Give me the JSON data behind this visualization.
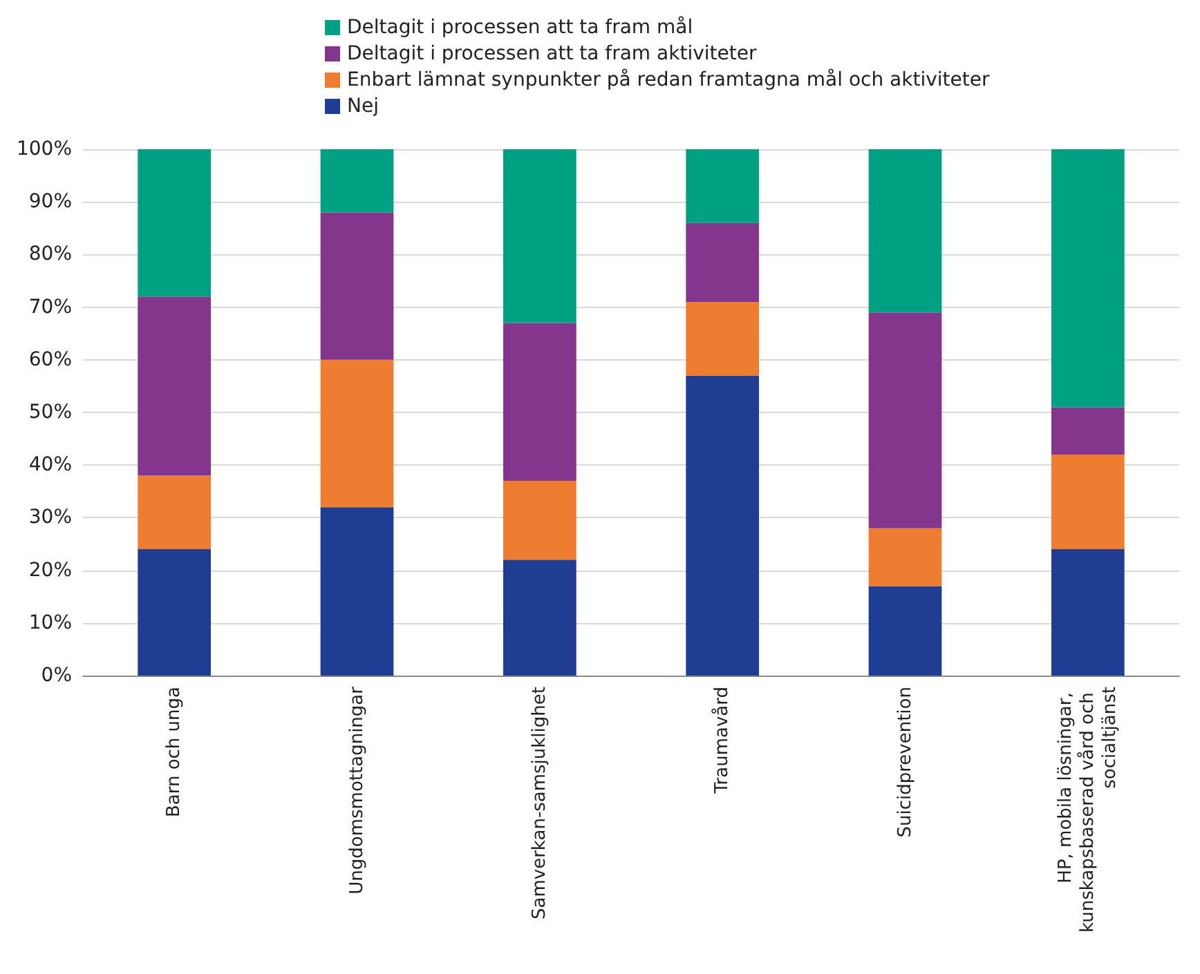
{
  "chart_data": {
    "type": "bar",
    "stacked": true,
    "categories": [
      "Barn och unga",
      "Ungdomsmottagningar",
      "Samverkan-samsjuklighet",
      "Traumavård",
      "Suicidprevention",
      "HP, mobila lösningar, kunskapsbaserad vård och socialtjänst"
    ],
    "series": [
      {
        "name": "Nej",
        "color": "#1f3d92",
        "values": [
          24,
          32,
          22,
          57,
          17,
          24
        ]
      },
      {
        "name": "Enbart lämnat synpunkter på redan framtagna mål och aktiviteter",
        "color": "#ee7d31",
        "values": [
          14,
          28,
          15,
          14,
          11,
          18
        ]
      },
      {
        "name": "Deltagit i processen att ta fram aktiviteter",
        "color": "#84358c",
        "values": [
          34,
          28,
          30,
          15,
          41,
          9
        ]
      },
      {
        "name": "Deltagit i processen att ta fram mål",
        "color": "#00a082",
        "values": [
          28,
          12,
          33,
          14,
          31,
          49
        ]
      }
    ],
    "ylim": [
      0,
      100
    ],
    "yticks": [
      {
        "value": 0,
        "label": "0%"
      },
      {
        "value": 10,
        "label": "10%"
      },
      {
        "value": 20,
        "label": "20%"
      },
      {
        "value": 30,
        "label": "30%"
      },
      {
        "value": 40,
        "label": "40%"
      },
      {
        "value": 50,
        "label": "50%"
      },
      {
        "value": 60,
        "label": "60%"
      },
      {
        "value": 70,
        "label": "70%"
      },
      {
        "value": 80,
        "label": "80%"
      },
      {
        "value": 90,
        "label": "90%"
      },
      {
        "value": 100,
        "label": "100%"
      }
    ],
    "grid": "y",
    "legend": "top"
  }
}
